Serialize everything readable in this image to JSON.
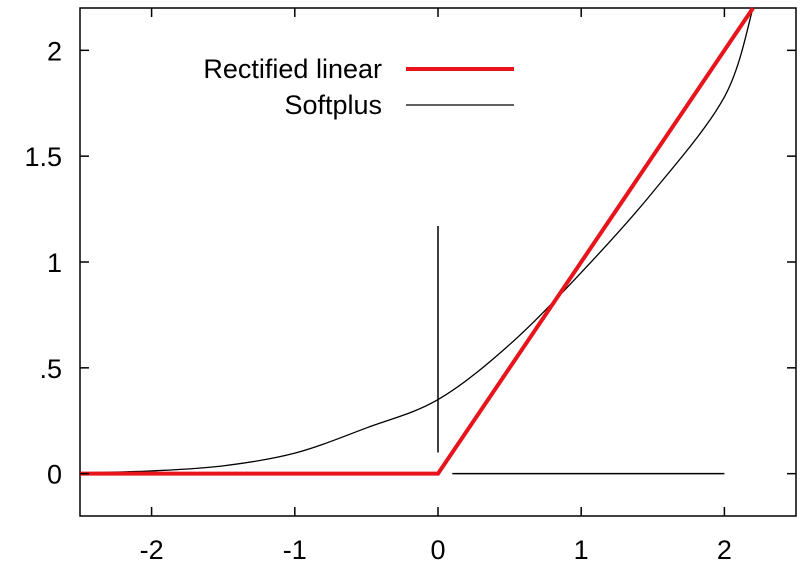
{
  "chart_data": {
    "type": "line",
    "title": "",
    "xlabel": "",
    "ylabel": "",
    "xlim": [
      -2.5,
      2.5
    ],
    "ylim": [
      -0.2,
      2.2
    ],
    "grid": false,
    "legend_position": "top-left",
    "x_ticks": [
      {
        "value": -2,
        "label": "-2"
      },
      {
        "value": -1,
        "label": "-1"
      },
      {
        "value": 0,
        "label": "0"
      },
      {
        "value": 1,
        "label": "1"
      },
      {
        "value": 2,
        "label": "2"
      }
    ],
    "y_ticks": [
      {
        "value": 0,
        "label": "0"
      },
      {
        "value": 0.5,
        "label": ".5"
      },
      {
        "value": 1,
        "label": "1"
      },
      {
        "value": 1.5,
        "label": "1.5"
      },
      {
        "value": 2,
        "label": "2"
      }
    ],
    "series": [
      {
        "name": "Rectified linear",
        "color": "#e8141c",
        "x": [
          -2.5,
          0,
          2.2
        ],
        "y": [
          0,
          0,
          2.2
        ]
      },
      {
        "name": "Softplus",
        "color": "#000000",
        "x": [
          -2.5,
          -2.0,
          -1.5,
          -1.0,
          -0.5,
          0.0,
          0.5,
          1.0,
          1.5,
          2.0,
          2.2
        ],
        "y": [
          0.004,
          0.013,
          0.037,
          0.097,
          0.216,
          0.35,
          0.61,
          0.95,
          1.33,
          1.78,
          2.2
        ]
      }
    ],
    "annotations": [
      {
        "type": "vertical-segment",
        "x": 0,
        "y": [
          0.1,
          1.17
        ],
        "color": "#000000"
      },
      {
        "type": "horizontal-segment",
        "y": 0,
        "x": [
          0.1,
          2.0
        ],
        "color": "#000000"
      }
    ]
  }
}
